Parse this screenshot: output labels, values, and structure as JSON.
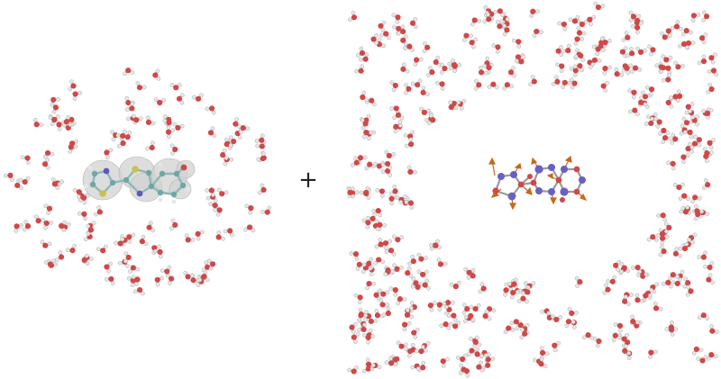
{
  "operator": "+",
  "colors": {
    "oxygen": "#d04848",
    "hydrogen": "#e6e6e6",
    "carbon": "#6fa7a4",
    "nitrogen": "#5a5ab4",
    "sulfur": "#c9c24a",
    "nitrogen_right": "#6a5fc4",
    "charge_vector": "#c46a1a",
    "bond": "#8a8a8a",
    "surface": "#cfcfcf"
  },
  "panels": [
    {
      "id": "left",
      "description_icon": "solvated-molecule-small-cluster"
    },
    {
      "id": "right",
      "description_icon": "solvated-molecule-large-box-with-cavity"
    }
  ]
}
